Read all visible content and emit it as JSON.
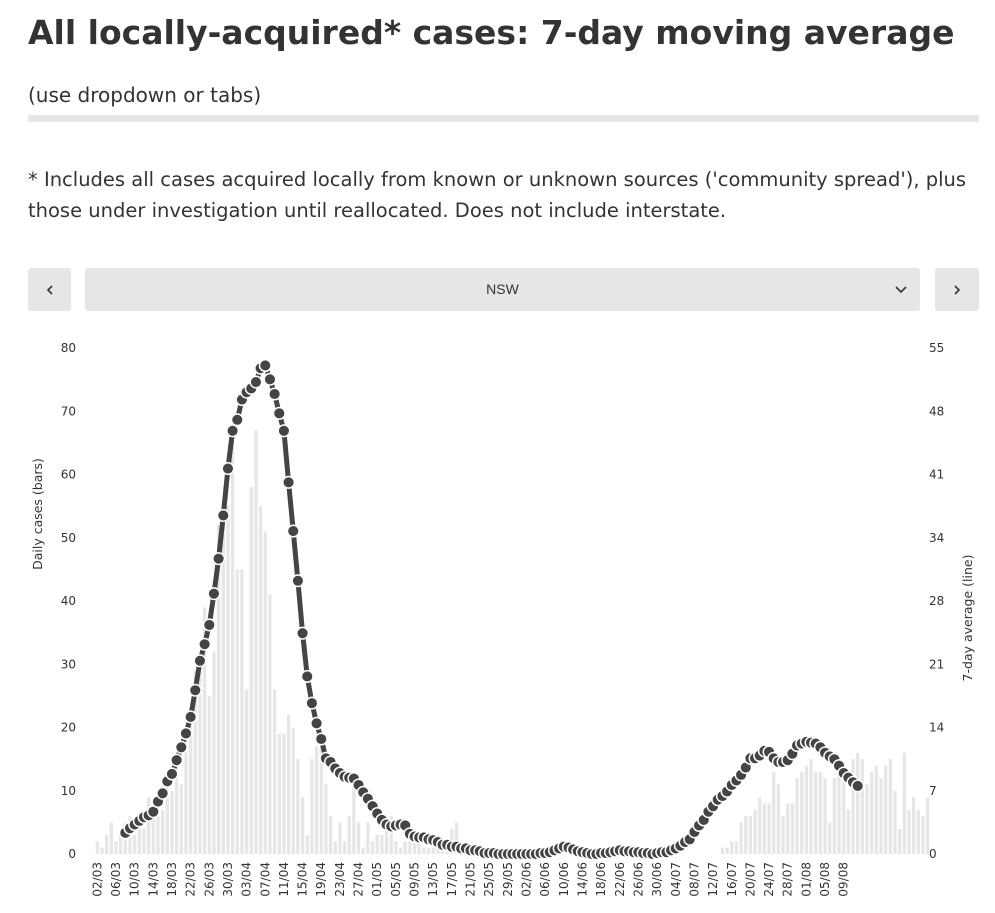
{
  "header": {
    "title": "All locally-acquired* cases: 7-day moving average",
    "title_suffix": "(use dropdown or tabs)"
  },
  "note": "* Includes all cases acquired locally from known or unknown sources ('community spread'), plus those under investigation until reallocated. Does not include interstate.",
  "controls": {
    "prev_icon": "chevron-left-icon",
    "next_icon": "chevron-right-icon",
    "select_icon": "chevron-down-icon",
    "selected_region": "NSW"
  },
  "colors": {
    "bars": "#e6e6e6",
    "line": "#444444",
    "markers": "#444444",
    "marker_stroke": "#ffffff",
    "controls_bg": "#e6e6e6"
  },
  "chart_data": {
    "type": "bar+line",
    "left_axis_label": "Daily cases (bars)",
    "right_axis_label": "7-day average (line)",
    "left_ticks": [
      "0",
      "10",
      "20",
      "30",
      "40",
      "50",
      "60",
      "70",
      "80"
    ],
    "right_ticks": [
      "0",
      "7",
      "14",
      "21",
      "28",
      "34",
      "41",
      "48",
      "55"
    ],
    "ylim_left": [
      0,
      80
    ],
    "ylim_right": [
      0,
      55
    ],
    "x_tick_labels": [
      "02/03",
      "06/03",
      "10/03",
      "14/03",
      "18/03",
      "22/03",
      "26/03",
      "30/03",
      "03/04",
      "07/04",
      "11/04",
      "15/04",
      "19/04",
      "23/04",
      "27/04",
      "01/05",
      "05/05",
      "09/05",
      "13/05",
      "17/05",
      "21/05",
      "25/05",
      "29/05",
      "02/06",
      "06/06",
      "10/06",
      "14/06",
      "18/06",
      "22/06",
      "26/06",
      "30/06",
      "04/07",
      "08/07",
      "12/07",
      "16/07",
      "20/07",
      "24/07",
      "28/07",
      "01/08",
      "05/08",
      "09/08"
    ],
    "daily_cases": [
      2,
      1,
      3,
      5,
      2,
      4,
      5,
      6,
      3,
      5,
      4,
      9,
      7,
      6,
      7,
      9,
      10,
      14,
      11,
      18,
      21,
      29,
      31,
      39,
      25,
      32,
      52,
      56,
      55,
      68,
      45,
      45,
      26,
      58,
      67,
      55,
      51,
      41,
      26,
      19,
      19,
      22,
      20,
      15,
      9,
      3,
      15,
      17,
      17,
      11,
      6,
      2,
      5,
      2,
      6,
      11,
      5,
      1,
      5,
      2,
      3,
      3,
      5,
      6,
      2,
      1,
      2,
      2,
      4,
      3,
      1,
      1,
      1,
      2,
      2,
      1,
      4,
      5,
      2,
      1,
      1,
      1,
      0,
      0,
      0,
      0,
      0,
      0,
      0,
      0,
      0,
      0,
      0,
      0,
      0,
      0,
      0,
      0,
      0,
      0,
      0,
      0,
      0,
      0,
      0,
      0,
      0,
      0,
      0,
      0,
      0,
      0,
      0,
      0,
      0,
      0,
      0,
      0,
      0,
      0,
      0,
      0,
      0,
      0,
      0,
      0,
      0,
      0,
      0,
      0,
      0,
      0,
      0,
      0,
      1,
      1,
      2,
      2,
      5,
      6,
      6,
      7,
      9,
      8,
      8,
      13,
      11,
      6,
      8,
      8,
      12,
      13,
      14,
      15,
      13,
      13,
      12,
      5,
      12,
      13,
      13,
      7,
      15,
      16,
      15,
      11,
      13,
      14,
      12,
      14,
      15,
      10,
      4,
      16,
      7,
      9,
      7,
      6,
      9
    ],
    "moving_average": [
      2.3,
      2.8,
      3.2,
      3.6,
      4.0,
      4.2,
      4.6,
      5.7,
      6.6,
      7.9,
      8.7,
      10.2,
      11.6,
      13.1,
      14.9,
      17.8,
      21.0,
      22.8,
      24.9,
      28.3,
      32.1,
      36.8,
      41.9,
      46.0,
      47.2,
      49.4,
      50.2,
      50.6,
      51.3,
      52.8,
      53.1,
      51.6,
      50.0,
      47.9,
      46.0,
      40.4,
      35.1,
      29.7,
      24.0,
      19.3,
      16.4,
      14.2,
      12.5,
      10.4,
      10.0,
      9.3,
      8.8,
      8.4,
      8.3,
      8.2,
      7.5,
      6.7,
      6.0,
      5.2,
      4.4,
      3.7,
      3.2,
      3.0,
      3.1,
      3.2,
      3.1,
      2.2,
      1.9,
      1.8,
      1.8,
      1.6,
      1.5,
      1.3,
      1.0,
      1.0,
      0.8,
      0.8,
      0.6,
      0.6,
      0.4,
      0.4,
      0.3,
      0.1,
      0.1,
      0.1,
      0.0,
      0.0,
      0.0,
      0.0,
      0.0,
      0.0,
      0.0,
      0.0,
      0.0,
      0.1,
      0.1,
      0.2,
      0.4,
      0.6,
      0.8,
      0.7,
      0.5,
      0.3,
      0.2,
      0.1,
      0.0,
      0.0,
      0.1,
      0.1,
      0.2,
      0.3,
      0.4,
      0.3,
      0.3,
      0.2,
      0.2,
      0.1,
      0.1,
      0.0,
      0.1,
      0.2,
      0.2,
      0.4,
      0.6,
      0.9,
      1.3,
      1.6,
      2.4,
      3.1,
      3.7,
      4.6,
      5.2,
      5.9,
      6.3,
      6.8,
      7.5,
      8.0,
      8.6,
      9.4,
      10.4,
      10.4,
      10.7,
      11.2,
      11.1,
      10.4,
      10.0,
      10.0,
      10.2,
      10.9,
      11.8,
      12.0,
      12.2,
      12.1,
      12.0,
      11.6,
      11.0,
      10.6,
      10.3,
      9.6,
      8.8,
      8.3,
      7.8,
      7.4
    ]
  }
}
